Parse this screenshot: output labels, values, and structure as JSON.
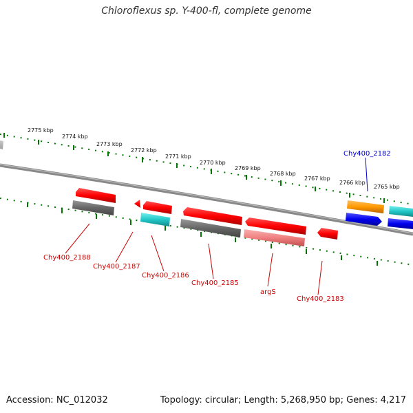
{
  "title": "Chloroflexus sp. Y-400-fl, complete genome",
  "footer": {
    "accession": "Accession: NC_012032",
    "topology": "Topology: circular; Length: 5,268,950 bp; Genes: 4,217"
  },
  "ticks": [
    "2775 kbp",
    "2774 kbp",
    "2773 kbp",
    "2772 kbp",
    "2771 kbp",
    "2770 kbp",
    "2769 kbp",
    "2768 kbp",
    "2767 kbp",
    "2766 kbp",
    "2765 kbp"
  ],
  "genes": [
    {
      "label": "Chy400_2188",
      "color": "#cc0000"
    },
    {
      "label": "Chy400_2187",
      "color": "#cc0000"
    },
    {
      "label": "Chy400_2186",
      "color": "#cc0000"
    },
    {
      "label": "Chy400_2185",
      "color": "#cc0000"
    },
    {
      "label": "argS",
      "color": "#cc0000"
    },
    {
      "label": "Chy400_2183",
      "color": "#cc0000"
    },
    {
      "label": "Chy400_2182",
      "color": "#0000cc"
    }
  ],
  "colors": {
    "gene_red": "#ff0000",
    "rna_gray": "#666666",
    "cyan": "#1fc9c9",
    "pink": "#f08080",
    "orange": "#ff9900",
    "blue": "#0000ee",
    "tick_green": "#007700",
    "backbone": "#888888"
  }
}
